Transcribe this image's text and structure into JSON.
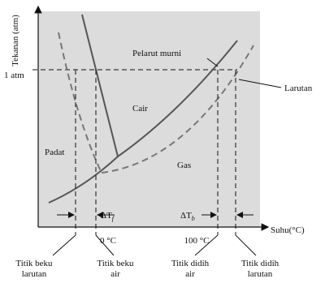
{
  "axes": {
    "y_label": "Tekanan (atm)",
    "x_label": "Suhu(°C)",
    "pressure_mark": "1 atm",
    "freezing_temp": "0 °C",
    "boiling_temp": "100 °C"
  },
  "regions": {
    "solid": "Padat",
    "liquid": "Cair",
    "gas": "Gas"
  },
  "curve_labels": {
    "pure_solvent": "Pelarut murni",
    "solution": "Larutan"
  },
  "deltas": {
    "freezing": {
      "symbol": "ΔT",
      "subscript": "f"
    },
    "boiling": {
      "symbol": "ΔT",
      "subscript": "b"
    }
  },
  "points": [
    {
      "line1": "Titik beku",
      "line2": "larutan"
    },
    {
      "line1": "Titik beku",
      "line2": "air"
    },
    {
      "line1": "Titik didih",
      "line2": "air"
    },
    {
      "line1": "Titik didih",
      "line2": "larutan"
    }
  ]
}
